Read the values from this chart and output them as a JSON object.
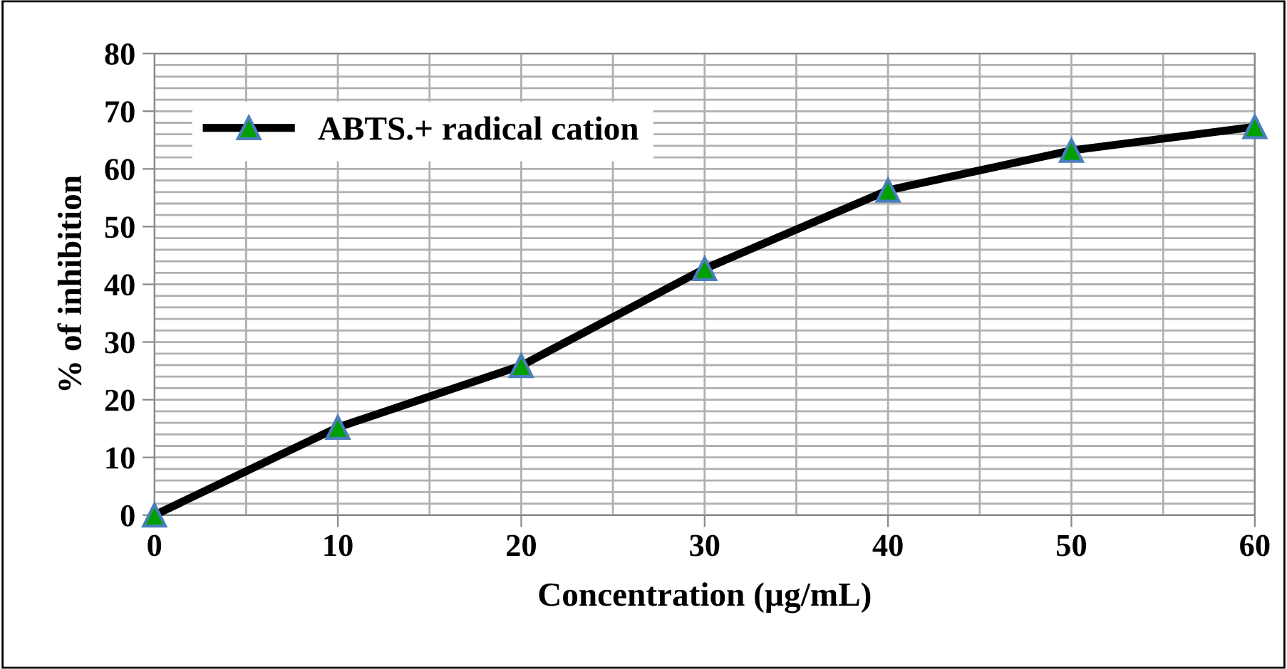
{
  "chart_data": {
    "type": "line",
    "xlabel": "Concentration (µg/mL)",
    "ylabel": "% of inhibition",
    "x": [
      0,
      10,
      20,
      30,
      40,
      50,
      60
    ],
    "series": [
      {
        "name": "ABTS.+ radical cation",
        "color": "#000000",
        "values": [
          0,
          15.2,
          25.9,
          42.7,
          56.3,
          63.2,
          67.3
        ]
      }
    ],
    "xlim": [
      0,
      60
    ],
    "xticks": [
      0,
      10,
      20,
      30,
      40,
      50,
      60
    ],
    "ylim": [
      0,
      80
    ],
    "yticks": [
      0,
      10,
      20,
      30,
      40,
      50,
      60,
      70,
      80
    ],
    "grid": true,
    "legend": "top left",
    "marker": "triangle",
    "line_style": "solid"
  }
}
